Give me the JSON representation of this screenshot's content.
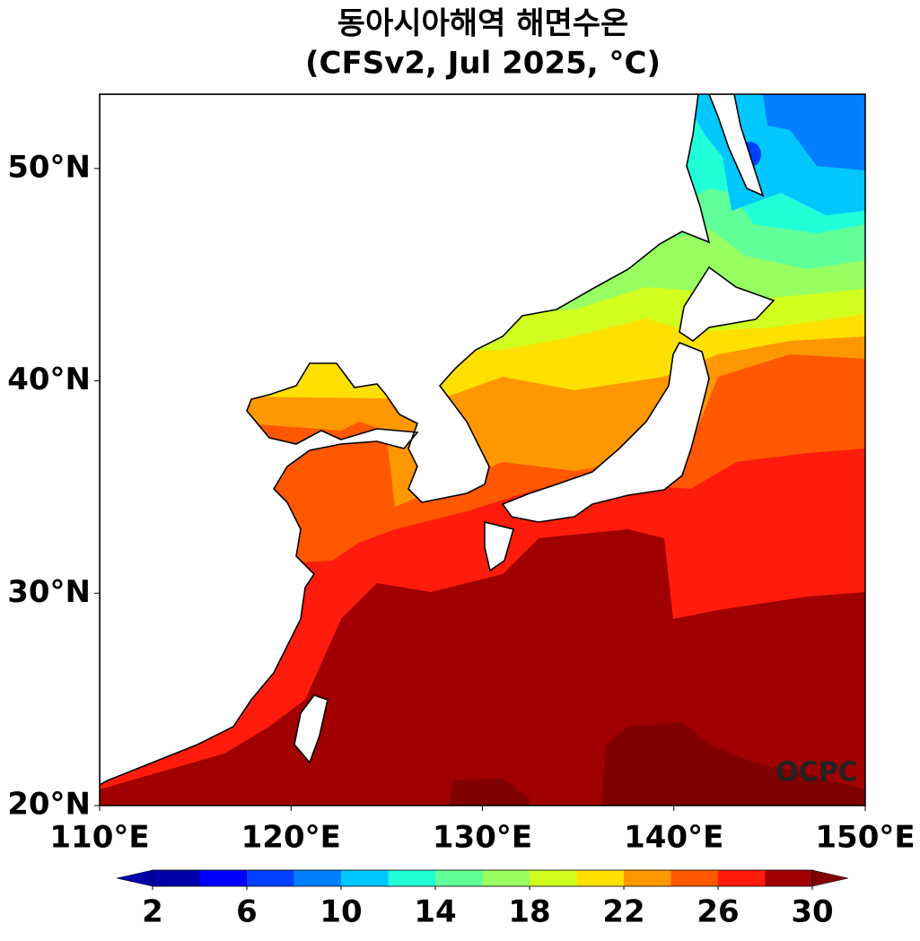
{
  "title": "동아시아해역 해면수온",
  "subtitle": "(CFSv2, Jul 2025, °C)",
  "map": {
    "xlim": [
      110,
      150
    ],
    "ylim": [
      20,
      53.5
    ],
    "xticks": [
      {
        "value": 110,
        "label": "110°E"
      },
      {
        "value": 120,
        "label": "120°E"
      },
      {
        "value": 130,
        "label": "130°E"
      },
      {
        "value": 140,
        "label": "140°E"
      },
      {
        "value": 150,
        "label": "150°E"
      }
    ],
    "yticks": [
      {
        "value": 20,
        "label": "20°N"
      },
      {
        "value": 30,
        "label": "30°N"
      },
      {
        "value": 40,
        "label": "40°N"
      },
      {
        "value": 50,
        "label": "50°N"
      }
    ]
  },
  "colorbar": {
    "levels": [
      2,
      4,
      6,
      8,
      10,
      12,
      14,
      16,
      18,
      20,
      22,
      24,
      26,
      28,
      30
    ],
    "colors": [
      "#0000aa",
      "#0000ff",
      "#0040ff",
      "#0080ff",
      "#00c8ff",
      "#20ffd8",
      "#60ff98",
      "#98ff60",
      "#d0ff20",
      "#ffe000",
      "#ff9800",
      "#ff5800",
      "#ff1c0c",
      "#a00000"
    ],
    "under_color": "#0000aa",
    "over_color": "#800000",
    "ticks": [
      2,
      6,
      10,
      14,
      18,
      22,
      26,
      30
    ]
  },
  "credit": "OCPC"
}
